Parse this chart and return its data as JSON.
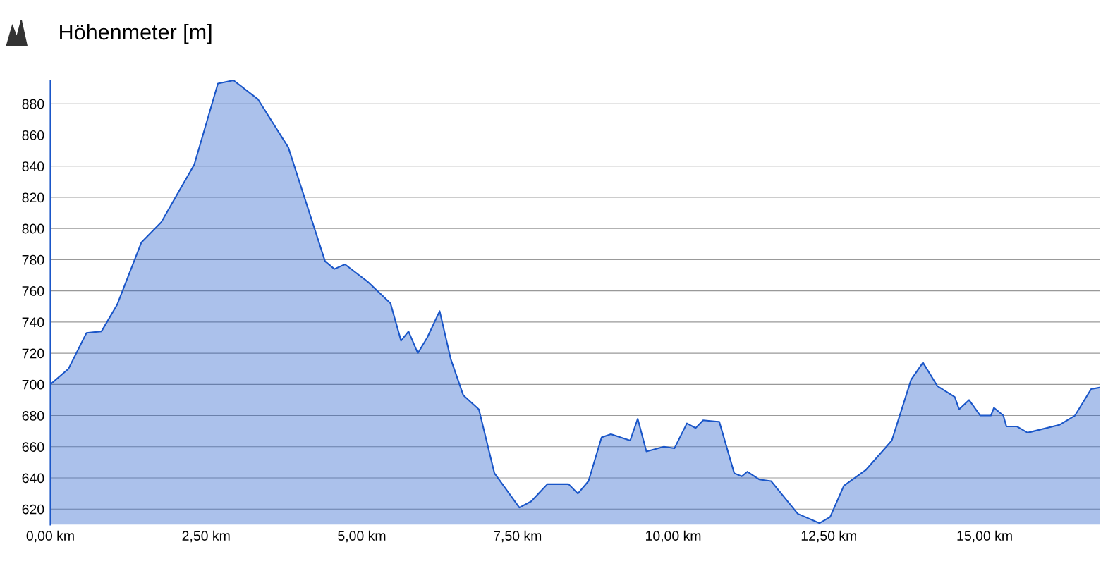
{
  "chart_data": {
    "type": "area",
    "title": "Höhenmeter [m]",
    "x": [
      0,
      0.29,
      0.58,
      0.82,
      1.07,
      1.46,
      1.78,
      2.31,
      2.69,
      2.94,
      3.33,
      3.82,
      4.41,
      4.56,
      4.73,
      5.09,
      5.46,
      5.63,
      5.75,
      5.9,
      6.05,
      6.25,
      6.43,
      6.63,
      6.88,
      7.13,
      7.53,
      7.72,
      7.98,
      8.32,
      8.47,
      8.64,
      8.85,
      9.0,
      9.31,
      9.43,
      9.57,
      9.85,
      10.02,
      10.22,
      10.36,
      10.48,
      10.74,
      10.98,
      11.1,
      11.19,
      11.38,
      11.57,
      12.0,
      12.35,
      12.52,
      12.74,
      13.09,
      13.51,
      13.82,
      14.01,
      14.24,
      14.52,
      14.59,
      14.75,
      14.93,
      15.1,
      15.15,
      15.3,
      15.35,
      15.52,
      15.69,
      16.2,
      16.45,
      16.71,
      16.85
    ],
    "series": [
      {
        "color": "#1a56c8",
        "values": [
          700,
          710,
          733,
          734,
          751,
          791,
          804,
          841,
          893,
          895,
          883,
          852,
          779,
          774,
          777,
          766,
          752,
          728,
          734,
          720,
          730,
          747,
          716,
          693,
          684,
          643,
          621,
          625,
          636,
          636,
          630,
          638,
          666,
          668,
          664,
          678,
          657,
          660,
          659,
          675,
          672,
          677,
          676,
          643,
          641,
          644,
          639,
          638,
          617,
          611,
          615,
          635,
          645,
          664,
          703,
          714,
          699,
          692,
          684,
          690,
          680,
          680,
          685,
          680,
          673,
          673,
          669,
          674,
          680,
          697,
          698
        ]
      }
    ],
    "xlim": [
      0,
      16.85
    ],
    "xticks": [
      {
        "value": 0,
        "label": "0,00 km"
      },
      {
        "value": 2.5,
        "label": "2,50 km"
      },
      {
        "value": 5,
        "label": "5,00 km"
      },
      {
        "value": 7.5,
        "label": "7,50 km"
      },
      {
        "value": 10,
        "label": "10,00 km"
      },
      {
        "value": 12.5,
        "label": "12,50 km"
      },
      {
        "value": 15,
        "label": "15,00 km"
      }
    ],
    "ylim": [
      610,
      895
    ],
    "yticks": [
      620,
      640,
      660,
      680,
      700,
      720,
      740,
      760,
      780,
      800,
      820,
      840,
      860,
      880
    ],
    "grid": "y",
    "marker": "none",
    "line_style": "solid"
  }
}
